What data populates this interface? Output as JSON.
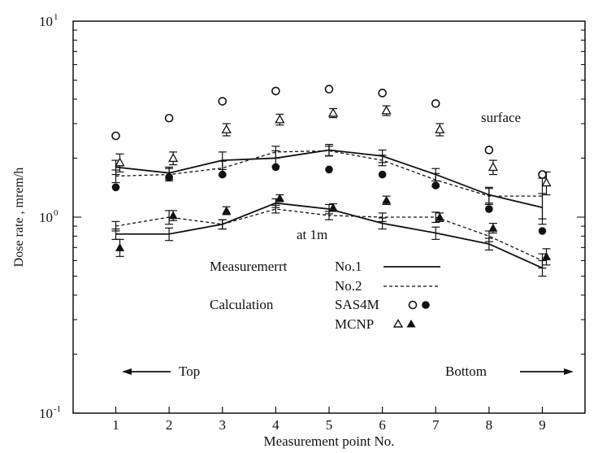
{
  "chart_data": {
    "type": "line",
    "xlabel": "Measurement point No.",
    "ylabel": "Dose rate , mrem/h",
    "yscale": "log",
    "xlim": [
      0.2,
      9.8
    ],
    "ylim": [
      0.1,
      10
    ],
    "x_ticks": [
      "1",
      "2",
      "3",
      "4",
      "5",
      "6",
      "7",
      "8",
      "9"
    ],
    "y_ticks": [
      {
        "value": 10,
        "base": "10",
        "exp": "1"
      },
      {
        "value": 1,
        "base": "10",
        "exp": "0"
      },
      {
        "value": 0.1,
        "base": "10",
        "exp": "-1"
      }
    ],
    "x": [
      1,
      2,
      3,
      4,
      5,
      6,
      7,
      8,
      9
    ],
    "series": [
      {
        "name": "No.1",
        "group": "surface",
        "style": "solid",
        "values": [
          1.8,
          1.68,
          1.95,
          2.0,
          2.2,
          2.05,
          1.65,
          1.3,
          1.12
        ],
        "err": [
          0.15,
          0.12,
          0.2,
          0.18,
          0.15,
          0.15,
          0.12,
          0.12,
          0.2
        ]
      },
      {
        "name": "No.2",
        "group": "surface",
        "style": "dashed",
        "values": [
          1.62,
          1.65,
          1.78,
          2.15,
          2.18,
          1.95,
          1.55,
          1.28,
          1.28
        ],
        "err": [
          0.12,
          0.12,
          0.15,
          0.15,
          0.12,
          0.12,
          0.12,
          0.12,
          0.3
        ]
      },
      {
        "name": "No.1",
        "group": "at 1m",
        "style": "solid",
        "values": [
          0.82,
          0.82,
          0.92,
          1.18,
          1.1,
          0.93,
          0.83,
          0.73,
          0.55
        ],
        "err": [
          0.05,
          0.06,
          0.05,
          0.06,
          0.06,
          0.06,
          0.06,
          0.05,
          0.05
        ]
      },
      {
        "name": "No.2",
        "group": "at 1m",
        "style": "dashed",
        "values": [
          0.9,
          1.0,
          0.92,
          1.1,
          1.02,
          1.0,
          1.0,
          0.8,
          0.6
        ],
        "err": [
          0.05,
          0.08,
          0.05,
          0.05,
          0.05,
          0.05,
          0.06,
          0.05,
          0.05
        ]
      },
      {
        "name": "SAS4M",
        "group": "surface",
        "marker": "open-circle",
        "values": [
          2.6,
          3.2,
          3.9,
          4.4,
          4.5,
          4.3,
          3.8,
          2.2,
          1.65
        ]
      },
      {
        "name": "SAS4M",
        "group": "at 1m",
        "marker": "filled-circle",
        "values": [
          1.42,
          1.6,
          1.65,
          1.8,
          1.75,
          1.65,
          1.45,
          1.1,
          0.85
        ]
      },
      {
        "name": "MCNP",
        "group": "surface",
        "marker": "open-triangle",
        "values": [
          1.9,
          2.0,
          2.8,
          3.15,
          3.4,
          3.5,
          2.8,
          1.8,
          1.5
        ],
        "err": [
          0.2,
          0.15,
          0.2,
          0.2,
          0.18,
          0.2,
          0.2,
          0.15,
          0.2
        ]
      },
      {
        "name": "MCNP",
        "group": "at 1m",
        "marker": "filled-triangle",
        "values": [
          0.7,
          1.02,
          1.08,
          1.25,
          1.12,
          1.22,
          1.0,
          0.88,
          0.63
        ],
        "err": [
          0.07,
          0.06,
          0.05,
          0.05,
          0.05,
          0.06,
          0.05,
          0.05,
          0.06
        ]
      }
    ],
    "annotations": {
      "surface": "surface",
      "at_1m": "at 1m",
      "top": "Top",
      "bottom": "Bottom"
    },
    "legend": {
      "placement": "center",
      "measurement_label": "Measuremerrt",
      "calculation_label": "Calculation",
      "no1": "No.1",
      "no2": "No.2",
      "sas4m": "SAS4M",
      "mcnp": "MCNP"
    }
  }
}
